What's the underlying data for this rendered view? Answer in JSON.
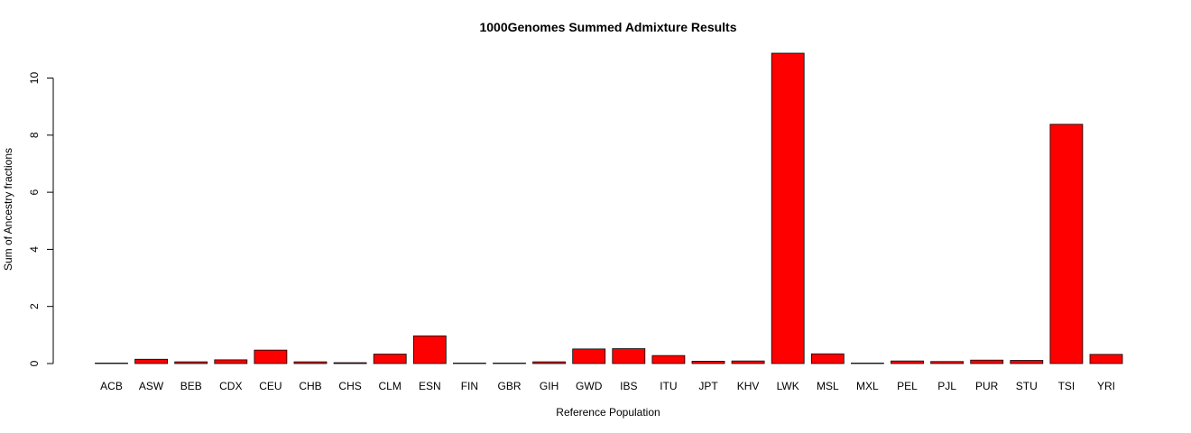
{
  "chart_data": {
    "type": "bar",
    "title": "1000Genomes Summed Admixture Results",
    "xlabel": "Reference Population",
    "ylabel": "Sum of Ancestry fractions",
    "categories": [
      "ACB",
      "ASW",
      "BEB",
      "CDX",
      "CEU",
      "CHB",
      "CHS",
      "CLM",
      "ESN",
      "FIN",
      "GBR",
      "GIH",
      "GWD",
      "IBS",
      "ITU",
      "JPT",
      "KHV",
      "LWK",
      "MSL",
      "MXL",
      "PEL",
      "PJL",
      "PUR",
      "STU",
      "TSI",
      "YRI"
    ],
    "values": [
      0.01,
      0.15,
      0.06,
      0.13,
      0.47,
      0.06,
      0.03,
      0.33,
      0.97,
      0.01,
      0.01,
      0.06,
      0.51,
      0.52,
      0.28,
      0.08,
      0.09,
      10.87,
      0.34,
      0.01,
      0.09,
      0.07,
      0.12,
      0.11,
      8.38,
      0.32
    ],
    "yticks": [
      0,
      2,
      4,
      6,
      8,
      10
    ],
    "ylim": [
      0,
      10.87
    ],
    "bar_color": "#ff0000",
    "grid": false,
    "legend": "none"
  }
}
